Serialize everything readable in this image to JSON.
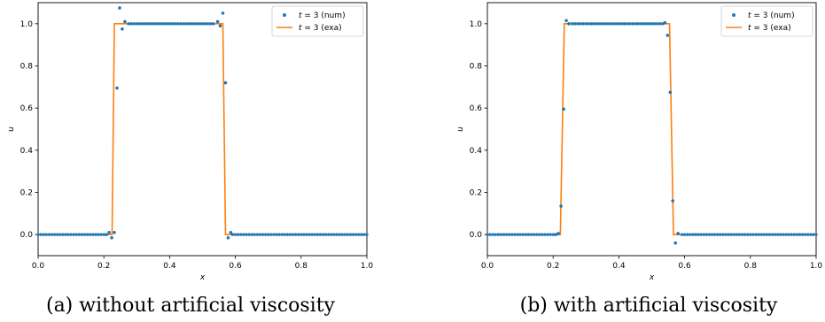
{
  "colors": {
    "numeric": "#1f77b4",
    "exact": "#ff7f0e"
  },
  "chart_data": [
    {
      "type": "scatter+line",
      "caption": "(a) without artificial viscosity",
      "xlabel": "x",
      "ylabel": "u",
      "xlim": [
        0.0,
        1.0
      ],
      "ylim": [
        -0.1,
        1.1
      ],
      "xticks": [
        "0.0",
        "0.2",
        "0.4",
        "0.6",
        "0.8",
        "1.0"
      ],
      "yticks": [
        "0.0",
        "0.2",
        "0.4",
        "0.6",
        "0.8",
        "1.0"
      ],
      "legend_position": "top-right",
      "legend": [
        {
          "var": "t",
          "rest": " = 3 (num)",
          "marker": "dot"
        },
        {
          "var": "t",
          "rest": " = 3 (exa)",
          "marker": "line"
        }
      ],
      "series": [
        {
          "name": "t = 3 (num)",
          "style": "markers",
          "x_range": [
            0.0,
            1.0
          ],
          "n_points": 121,
          "overrides": [
            [
              0.208,
              0.0
            ],
            [
              0.216,
              0.01
            ],
            [
              0.224,
              -0.015
            ],
            [
              0.232,
              0.01
            ],
            [
              0.24,
              0.695
            ],
            [
              0.248,
              1.075
            ],
            [
              0.256,
              0.975
            ],
            [
              0.264,
              1.01
            ],
            [
              0.546,
              1.01
            ],
            [
              0.554,
              0.99
            ],
            [
              0.562,
              1.05
            ],
            [
              0.57,
              0.72
            ],
            [
              0.578,
              -0.015
            ],
            [
              0.586,
              0.01
            ]
          ]
        },
        {
          "name": "t = 3 (exa)",
          "style": "line",
          "x": [
            0.0,
            0.225,
            0.232,
            0.562,
            0.57,
            1.0
          ],
          "y": [
            0.0,
            0.0,
            1.0,
            1.0,
            0.0,
            0.0
          ]
        }
      ]
    },
    {
      "type": "scatter+line",
      "caption": "(b) with artificial viscosity",
      "xlabel": "x",
      "ylabel": "u",
      "xlim": [
        0.0,
        1.0
      ],
      "ylim": [
        -0.1,
        1.1
      ],
      "xticks": [
        "0.0",
        "0.2",
        "0.4",
        "0.6",
        "0.8",
        "1.0"
      ],
      "yticks": [
        "0.0",
        "0.2",
        "0.4",
        "0.6",
        "0.8",
        "1.0"
      ],
      "legend_position": "top-right",
      "legend": [
        {
          "var": "t",
          "rest": " = 3 (num)",
          "marker": "dot"
        },
        {
          "var": "t",
          "rest": " = 3 (exa)",
          "marker": "line"
        }
      ],
      "series": [
        {
          "name": "t = 3 (num)",
          "style": "markers",
          "x_range": [
            0.0,
            1.0
          ],
          "n_points": 121,
          "overrides": [
            [
              0.208,
              0.0
            ],
            [
              0.216,
              0.005
            ],
            [
              0.224,
              0.135
            ],
            [
              0.232,
              0.595
            ],
            [
              0.24,
              1.015
            ],
            [
              0.248,
              1.0
            ],
            [
              0.54,
              1.005
            ],
            [
              0.548,
              0.945
            ],
            [
              0.556,
              0.675
            ],
            [
              0.564,
              0.16
            ],
            [
              0.572,
              -0.04
            ],
            [
              0.58,
              0.005
            ]
          ]
        },
        {
          "name": "t = 3 (exa)",
          "style": "line",
          "x": [
            0.0,
            0.222,
            0.234,
            0.554,
            0.566,
            1.0
          ],
          "y": [
            0.0,
            0.0,
            1.0,
            1.0,
            0.0,
            0.0
          ]
        }
      ]
    }
  ]
}
